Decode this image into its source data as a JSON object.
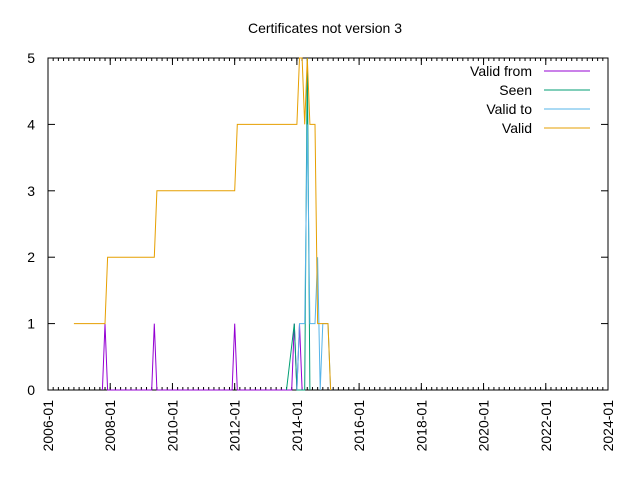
{
  "chart_data": {
    "type": "line",
    "title": "Certificates not version 3",
    "xlabel": "",
    "ylabel": "",
    "xlim": [
      "2006-01",
      "2024-01"
    ],
    "ylim": [
      0,
      5
    ],
    "x_ticks": [
      "2006-01",
      "2008-01",
      "2010-01",
      "2012-01",
      "2014-01",
      "2016-01",
      "2018-01",
      "2020-01",
      "2022-01",
      "2024-01"
    ],
    "y_ticks": [
      "0",
      "1",
      "2",
      "3",
      "4",
      "5"
    ],
    "legend_position": "top-right",
    "grid": false,
    "series": [
      {
        "name": "Valid from",
        "color": "#9400d3",
        "points": [
          [
            "2007-10",
            0
          ],
          [
            "2007-11",
            1
          ],
          [
            "2007-12",
            0
          ],
          [
            "2009-05",
            0
          ],
          [
            "2009-06",
            1
          ],
          [
            "2009-07",
            0
          ],
          [
            "2011-12",
            0
          ],
          [
            "2012-01",
            1
          ],
          [
            "2012-02",
            0
          ],
          [
            "2013-11",
            0
          ],
          [
            "2013-12",
            1
          ],
          [
            "2014-01",
            0
          ],
          [
            "2014-02",
            1
          ],
          [
            "2014-03",
            0
          ]
        ]
      },
      {
        "name": "Seen",
        "color": "#009e73",
        "points": [
          [
            "2013-09",
            0
          ],
          [
            "2013-12",
            1
          ],
          [
            "2014-01",
            0
          ],
          [
            "2014-04",
            0
          ],
          [
            "2014-05",
            5
          ],
          [
            "2014-06",
            0
          ]
        ]
      },
      {
        "name": "Valid to",
        "color": "#56b4e9",
        "points": [
          [
            "2014-01",
            0
          ],
          [
            "2014-02",
            1
          ],
          [
            "2014-04",
            1
          ],
          [
            "2014-05",
            4
          ],
          [
            "2014-06",
            1
          ],
          [
            "2014-08",
            1
          ],
          [
            "2014-09",
            2
          ],
          [
            "2014-10",
            0
          ],
          [
            "2014-11",
            1
          ],
          [
            "2015-01",
            1
          ],
          [
            "2015-02",
            0
          ]
        ]
      },
      {
        "name": "Valid",
        "color": "#e69f00",
        "points": [
          [
            "2006-11",
            1
          ],
          [
            "2007-11",
            1
          ],
          [
            "2007-12",
            2
          ],
          [
            "2009-06",
            2
          ],
          [
            "2009-07",
            3
          ],
          [
            "2012-01",
            3
          ],
          [
            "2012-02",
            4
          ],
          [
            "2014-01",
            4
          ],
          [
            "2014-02",
            5
          ],
          [
            "2014-03",
            5
          ],
          [
            "2014-04",
            4
          ],
          [
            "2014-05",
            5
          ],
          [
            "2014-06",
            4
          ],
          [
            "2014-08",
            4
          ],
          [
            "2014-09",
            1
          ],
          [
            "2015-01",
            1
          ],
          [
            "2015-02",
            0
          ]
        ]
      }
    ]
  }
}
